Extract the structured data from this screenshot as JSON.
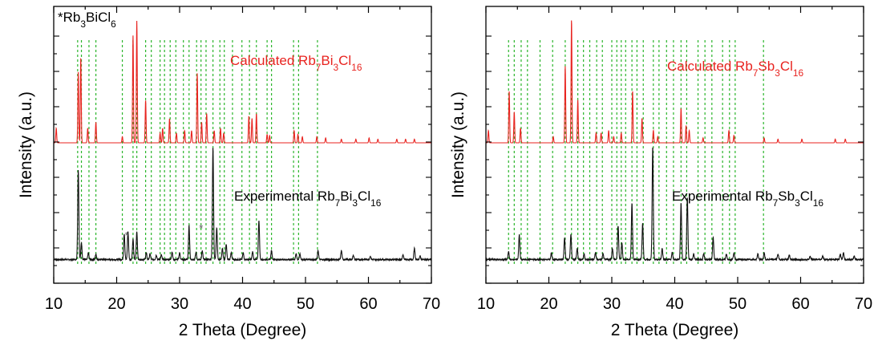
{
  "chart_data": [
    {
      "type": "line",
      "panel": "left",
      "xlabel": "2 Theta (Degree)",
      "ylabel": "Intensity (a.u.)",
      "xlim": [
        10,
        70
      ],
      "xticks": [
        10,
        20,
        30,
        40,
        50,
        60,
        70
      ],
      "yticks_labeled": false,
      "grid": false,
      "impurity_label": {
        "mark": "*",
        "text": "Rb",
        "sub1": "3",
        "mid": "BiCl",
        "sub2": "6"
      },
      "impurity_peaks": [
        21.8,
        33.6
      ],
      "reference_lines": [
        13.8,
        14.4,
        15.6,
        16.7,
        20.9,
        22.6,
        23.2,
        24.6,
        25.5,
        26.9,
        27.6,
        28.5,
        29.4,
        30.6,
        31.5,
        32.7,
        33.4,
        34.2,
        35.3,
        36.4,
        37.1,
        38.4,
        39.9,
        41.1,
        42.2,
        43.9,
        44.6,
        48.1,
        48.9,
        51.9
      ],
      "series": [
        {
          "name": "Calculated",
          "label": {
            "pre": "Calculated Rb",
            "s1": "7",
            "m1": "Bi",
            "s2": "3",
            "m2": "Cl",
            "s3": "16"
          },
          "color": "#e8231f",
          "peaks": [
            [
              10.4,
              0.12
            ],
            [
              13.9,
              0.58
            ],
            [
              14.3,
              0.7
            ],
            [
              15.4,
              0.12
            ],
            [
              16.7,
              0.17
            ],
            [
              20.9,
              0.05
            ],
            [
              22.6,
              0.88
            ],
            [
              23.2,
              1.0
            ],
            [
              24.6,
              0.35
            ],
            [
              26.9,
              0.08
            ],
            [
              27.3,
              0.12
            ],
            [
              28.4,
              0.2
            ],
            [
              29.5,
              0.08
            ],
            [
              30.8,
              0.1
            ],
            [
              31.9,
              0.1
            ],
            [
              32.8,
              0.57
            ],
            [
              33.5,
              0.17
            ],
            [
              34.3,
              0.24
            ],
            [
              35.5,
              0.1
            ],
            [
              36.5,
              0.12
            ],
            [
              37.0,
              0.08
            ],
            [
              41.0,
              0.22
            ],
            [
              41.5,
              0.2
            ],
            [
              42.2,
              0.24
            ],
            [
              43.9,
              0.07
            ],
            [
              44.3,
              0.06
            ],
            [
              48.2,
              0.1
            ],
            [
              48.8,
              0.07
            ],
            [
              49.5,
              0.05
            ],
            [
              51.8,
              0.05
            ],
            [
              53.2,
              0.04
            ],
            [
              55.7,
              0.03
            ],
            [
              58.0,
              0.03
            ],
            [
              60.1,
              0.04
            ],
            [
              61.5,
              0.03
            ],
            [
              64.5,
              0.03
            ],
            [
              65.9,
              0.03
            ],
            [
              67.3,
              0.03
            ]
          ]
        },
        {
          "name": "Experimental",
          "label": {
            "pre": "Experimental Rb",
            "s1": "7",
            "m1": "Bi",
            "s2": "3",
            "m2": "Cl",
            "s3": "16"
          },
          "color": "#111111",
          "peaks": [
            [
              13.9,
              0.8
            ],
            [
              14.4,
              0.15
            ],
            [
              15.5,
              0.06
            ],
            [
              16.7,
              0.05
            ],
            [
              21.2,
              0.23
            ],
            [
              21.8,
              0.25
            ],
            [
              22.6,
              0.18
            ],
            [
              23.2,
              0.25
            ],
            [
              24.7,
              0.06
            ],
            [
              25.3,
              0.05
            ],
            [
              26.3,
              0.04
            ],
            [
              27.1,
              0.04
            ],
            [
              28.8,
              0.07
            ],
            [
              30.0,
              0.06
            ],
            [
              31.5,
              0.3
            ],
            [
              32.6,
              0.06
            ],
            [
              33.6,
              0.08
            ],
            [
              35.3,
              1.0
            ],
            [
              35.9,
              0.28
            ],
            [
              36.8,
              0.1
            ],
            [
              37.4,
              0.14
            ],
            [
              38.2,
              0.06
            ],
            [
              40.1,
              0.06
            ],
            [
              41.6,
              0.07
            ],
            [
              42.6,
              0.35
            ],
            [
              44.6,
              0.08
            ],
            [
              48.5,
              0.05
            ],
            [
              49.1,
              0.05
            ],
            [
              52.0,
              0.08
            ],
            [
              55.7,
              0.08
            ],
            [
              57.6,
              0.04
            ],
            [
              60.3,
              0.03
            ],
            [
              65.5,
              0.04
            ],
            [
              67.3,
              0.1
            ],
            [
              68.2,
              0.03
            ]
          ]
        }
      ]
    },
    {
      "type": "line",
      "panel": "right",
      "xlabel": "2 Theta (Degree)",
      "ylabel": "Intensity (a.u.)",
      "xlim": [
        10,
        70
      ],
      "xticks": [
        10,
        20,
        30,
        40,
        50,
        60,
        70
      ],
      "yticks_labeled": false,
      "grid": false,
      "reference_lines": [
        13.6,
        14.5,
        15.6,
        16.6,
        18.6,
        20.6,
        22.6,
        23.6,
        24.6,
        25.5,
        26.5,
        27.6,
        28.5,
        30.0,
        30.8,
        31.5,
        32.2,
        33.2,
        34.0,
        35.0,
        36.6,
        37.5,
        38.7,
        39.8,
        41.0,
        41.9,
        43.7,
        44.8,
        45.9,
        47.6,
        48.7,
        49.6,
        54.1
      ],
      "series": [
        {
          "name": "Calculated",
          "label": {
            "pre": "Calculated Rb",
            "s1": "7",
            "m1": "Sb",
            "s2": "3",
            "m2": "Cl",
            "s3": "16"
          },
          "color": "#e8231f",
          "peaks": [
            [
              10.4,
              0.1
            ],
            [
              13.7,
              0.42
            ],
            [
              14.5,
              0.25
            ],
            [
              15.5,
              0.12
            ],
            [
              20.7,
              0.05
            ],
            [
              22.6,
              0.62
            ],
            [
              23.6,
              1.0
            ],
            [
              24.6,
              0.35
            ],
            [
              27.5,
              0.08
            ],
            [
              28.3,
              0.08
            ],
            [
              29.5,
              0.1
            ],
            [
              30.3,
              0.05
            ],
            [
              31.5,
              0.08
            ],
            [
              33.3,
              0.42
            ],
            [
              34.8,
              0.2
            ],
            [
              36.6,
              0.1
            ],
            [
              37.3,
              0.05
            ],
            [
              41.0,
              0.28
            ],
            [
              41.8,
              0.14
            ],
            [
              42.3,
              0.1
            ],
            [
              44.5,
              0.04
            ],
            [
              48.6,
              0.1
            ],
            [
              49.4,
              0.06
            ],
            [
              54.2,
              0.04
            ],
            [
              56.4,
              0.03
            ],
            [
              60.2,
              0.03
            ],
            [
              65.5,
              0.03
            ],
            [
              67.1,
              0.03
            ]
          ]
        },
        {
          "name": "Experimental",
          "label": {
            "pre": "Experimental Rb",
            "s1": "7",
            "m1": "Sb",
            "s2": "3",
            "m2": "Cl",
            "s3": "16"
          },
          "color": "#111111",
          "peaks": [
            [
              13.6,
              0.07
            ],
            [
              15.3,
              0.22
            ],
            [
              20.4,
              0.06
            ],
            [
              22.5,
              0.2
            ],
            [
              23.5,
              0.22
            ],
            [
              24.5,
              0.1
            ],
            [
              25.6,
              0.05
            ],
            [
              27.4,
              0.06
            ],
            [
              28.6,
              0.05
            ],
            [
              30.1,
              0.1
            ],
            [
              31.0,
              0.3
            ],
            [
              31.6,
              0.15
            ],
            [
              33.2,
              0.5
            ],
            [
              34.9,
              0.32
            ],
            [
              36.5,
              1.0
            ],
            [
              38.0,
              0.1
            ],
            [
              39.6,
              0.06
            ],
            [
              41.0,
              0.5
            ],
            [
              42.0,
              0.55
            ],
            [
              43.0,
              0.05
            ],
            [
              44.6,
              0.05
            ],
            [
              46.1,
              0.2
            ],
            [
              48.2,
              0.05
            ],
            [
              49.4,
              0.06
            ],
            [
              53.2,
              0.05
            ],
            [
              54.2,
              0.06
            ],
            [
              56.4,
              0.05
            ],
            [
              58.2,
              0.04
            ],
            [
              61.5,
              0.03
            ],
            [
              63.5,
              0.03
            ],
            [
              66.3,
              0.05
            ],
            [
              66.8,
              0.06
            ],
            [
              68.5,
              0.03
            ]
          ]
        }
      ]
    }
  ]
}
